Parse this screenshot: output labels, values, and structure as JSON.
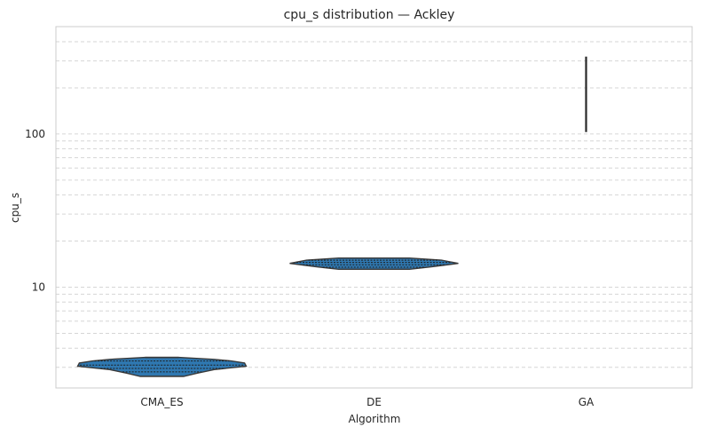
{
  "chart_data": {
    "type": "violin",
    "title": "cpu_s distribution — Ackley",
    "xlabel": "Algorithm",
    "ylabel": "cpu_s",
    "yscale": "log",
    "ylim": [
      2.2,
      400
    ],
    "yticks": [
      10,
      100
    ],
    "ytick_labels": [
      "10",
      "100"
    ],
    "categories": [
      "CMA_ES",
      "DE",
      "GA"
    ],
    "color": "#2f78b1",
    "edge_color": "#3a3a3a",
    "grid": true,
    "series": [
      {
        "name": "CMA_ES",
        "profile": [
          [
            2.62,
            0.26
          ],
          [
            2.75,
            0.42
          ],
          [
            2.9,
            0.62
          ],
          [
            3.05,
            1.0
          ],
          [
            3.2,
            0.98
          ],
          [
            3.3,
            0.82
          ],
          [
            3.38,
            0.62
          ],
          [
            3.45,
            0.34
          ],
          [
            3.48,
            0.2
          ]
        ],
        "quartiles": [
          2.8,
          2.95,
          3.1,
          3.3
        ]
      },
      {
        "name": "DE",
        "profile": [
          [
            13.1,
            0.42
          ],
          [
            13.6,
            0.68
          ],
          [
            14.3,
            1.0
          ],
          [
            15.0,
            0.8
          ],
          [
            15.5,
            0.42
          ]
        ],
        "quartiles": [
          13.5,
          14.0,
          14.5,
          15.0
        ]
      },
      {
        "name": "GA",
        "profile": [
          [
            103,
            0.5
          ],
          [
            150,
            0.6
          ],
          [
            250,
            0.6
          ],
          [
            320,
            0.5
          ]
        ],
        "quartiles": []
      }
    ]
  }
}
